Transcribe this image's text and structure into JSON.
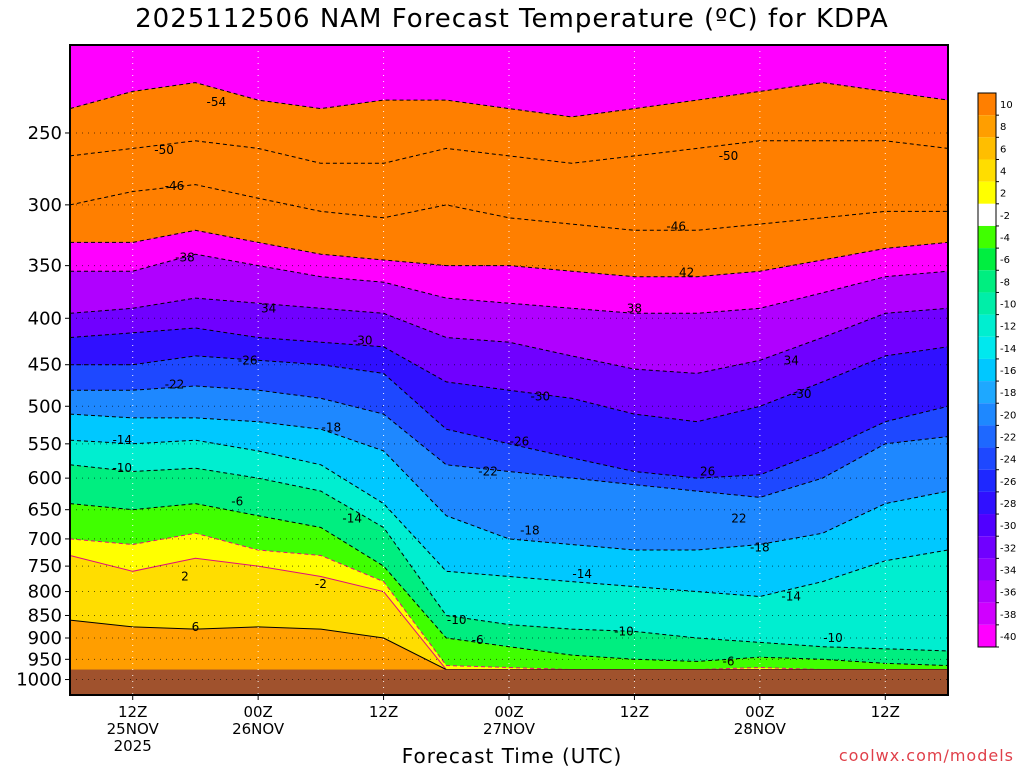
{
  "chart_data": {
    "type": "heatmap",
    "title": "2025112506 NAM Forecast Temperature (ºC) for KDPA",
    "xlabel": "Forecast Time (UTC)",
    "ylabel": "",
    "credit": "coolwx.com/models",
    "y_axis": {
      "scale": "log-pressure",
      "inverted": true,
      "ylim": [
        1040,
        200
      ],
      "ticks": [
        250,
        300,
        350,
        400,
        450,
        500,
        550,
        600,
        650,
        700,
        750,
        800,
        850,
        900,
        950,
        1000
      ]
    },
    "x_axis": {
      "ticks": [
        {
          "hour": 6,
          "line1": "12Z",
          "line2": "25NOV",
          "line3": "2025"
        },
        {
          "hour": 18,
          "line1": "00Z",
          "line2": "26NOV",
          "line3": ""
        },
        {
          "hour": 30,
          "line1": "12Z",
          "line2": "",
          "line3": ""
        },
        {
          "hour": 42,
          "line1": "00Z",
          "line2": "27NOV",
          "line3": ""
        },
        {
          "hour": 54,
          "line1": "12Z",
          "line2": "",
          "line3": ""
        },
        {
          "hour": 66,
          "line1": "00Z",
          "line2": "28NOV",
          "line3": ""
        },
        {
          "hour": 78,
          "line1": "12Z",
          "line2": "",
          "line3": ""
        }
      ],
      "xlim": [
        0,
        84
      ]
    },
    "grid": true,
    "colorbar": {
      "placement": "right",
      "labels": [
        "10",
        "8",
        "6",
        "4",
        "2",
        "-2",
        "-4",
        "-6",
        "-8",
        "-10",
        "-12",
        "-14",
        "-16",
        "-18",
        "-20",
        "-22",
        "-24",
        "-26",
        "-28",
        "-30",
        "-32",
        "-34",
        "-36",
        "-38",
        "-40"
      ],
      "colors": [
        "#ff7f00",
        "#ff9e00",
        "#ffbe00",
        "#ffdd00",
        "#ffff00",
        "#ffffff",
        "#40ff00",
        "#00ee40",
        "#00ee80",
        "#00eea8",
        "#00eed0",
        "#00e8ee",
        "#00c8ff",
        "#1ea8ff",
        "#1e88ff",
        "#1e68ff",
        "#1e48ff",
        "#1e28ff",
        "#3010ff",
        "#5000ff",
        "#7000ff",
        "#9000ff",
        "#b000ff",
        "#d000ff",
        "#ff00ff"
      ]
    },
    "isotherm_profile_hours": [
      0,
      6,
      12,
      18,
      24,
      30,
      36,
      42,
      48,
      54,
      60,
      66,
      72,
      78,
      84
    ],
    "isotherm_profiles": [
      {
        "level": 2,
        "pressures": [
          730,
          760,
          735,
          750,
          770,
          800,
          975,
          975,
          975,
          975,
          975,
          975,
          975,
          975,
          975
        ]
      },
      {
        "level": 6,
        "pressures": [
          860,
          875,
          880,
          875,
          880,
          900,
          975,
          975,
          975,
          975,
          975,
          975,
          975,
          975,
          975
        ]
      },
      {
        "level": -2,
        "pressures": [
          700,
          710,
          690,
          720,
          730,
          780,
          965,
          970,
          975,
          975,
          975,
          970,
          975,
          975,
          975
        ]
      },
      {
        "level": -6,
        "pressures": [
          640,
          650,
          640,
          660,
          680,
          750,
          900,
          920,
          940,
          950,
          955,
          945,
          950,
          960,
          965
        ]
      },
      {
        "level": -10,
        "pressures": [
          580,
          590,
          585,
          600,
          620,
          680,
          850,
          870,
          880,
          885,
          900,
          910,
          920,
          925,
          930
        ]
      },
      {
        "level": -14,
        "pressures": [
          545,
          550,
          545,
          560,
          580,
          640,
          760,
          770,
          780,
          790,
          800,
          810,
          780,
          740,
          720
        ]
      },
      {
        "level": -18,
        "pressures": [
          510,
          515,
          515,
          520,
          530,
          560,
          660,
          700,
          710,
          720,
          720,
          710,
          690,
          640,
          620
        ]
      },
      {
        "level": -22,
        "pressures": [
          480,
          480,
          475,
          480,
          490,
          510,
          580,
          590,
          600,
          610,
          620,
          630,
          600,
          550,
          540
        ]
      },
      {
        "level": -26,
        "pressures": [
          450,
          450,
          440,
          445,
          450,
          460,
          530,
          550,
          570,
          590,
          600,
          595,
          560,
          520,
          500
        ]
      },
      {
        "level": -30,
        "pressures": [
          420,
          415,
          410,
          420,
          425,
          430,
          470,
          480,
          490,
          510,
          520,
          500,
          470,
          440,
          430
        ]
      },
      {
        "level": -34,
        "pressures": [
          395,
          390,
          380,
          385,
          390,
          395,
          420,
          425,
          440,
          455,
          460,
          445,
          420,
          395,
          390
        ]
      },
      {
        "level": -38,
        "pressures": [
          355,
          355,
          340,
          350,
          360,
          365,
          380,
          385,
          390,
          395,
          395,
          390,
          375,
          360,
          355
        ]
      },
      {
        "level": -42,
        "pressures": [
          330,
          330,
          320,
          330,
          340,
          345,
          350,
          350,
          355,
          360,
          360,
          355,
          345,
          335,
          330
        ]
      },
      {
        "level": -46,
        "pressures": [
          300,
          290,
          285,
          295,
          305,
          310,
          300,
          310,
          315,
          320,
          320,
          315,
          310,
          305,
          305
        ]
      },
      {
        "level": -50,
        "pressures": [
          265,
          260,
          255,
          260,
          270,
          270,
          260,
          265,
          270,
          265,
          260,
          255,
          255,
          255,
          260
        ]
      },
      {
        "level": -54,
        "pressures": [
          235,
          225,
          220,
          230,
          235,
          230,
          230,
          235,
          240,
          235,
          230,
          225,
          220,
          225,
          230
        ]
      }
    ],
    "contour_labels": [
      {
        "text": "-54",
        "hour": 14,
        "p": 231
      },
      {
        "text": "-50",
        "hour": 9,
        "p": 261
      },
      {
        "text": "-46",
        "hour": 10,
        "p": 286
      },
      {
        "text": "-38",
        "hour": 11,
        "p": 343
      },
      {
        "text": "34",
        "hour": 19,
        "p": 390
      },
      {
        "text": "-30",
        "hour": 28,
        "p": 423
      },
      {
        "text": "-26",
        "hour": 17,
        "p": 445
      },
      {
        "text": "-22",
        "hour": 10,
        "p": 473
      },
      {
        "text": "-18",
        "hour": 25,
        "p": 528
      },
      {
        "text": "-14",
        "hour": 5,
        "p": 545
      },
      {
        "text": "-10",
        "hour": 5,
        "p": 585
      },
      {
        "text": "-6",
        "hour": 16,
        "p": 637
      },
      {
        "text": "-14",
        "hour": 27,
        "p": 665
      },
      {
        "text": "2",
        "hour": 11,
        "p": 770
      },
      {
        "text": "-2",
        "hour": 24,
        "p": 785
      },
      {
        "text": "6",
        "hour": 12,
        "p": 875
      },
      {
        "text": "-46",
        "hour": 58,
        "p": 317
      },
      {
        "text": "-50",
        "hour": 63,
        "p": 265
      },
      {
        "text": "42",
        "hour": 59,
        "p": 356
      },
      {
        "text": "38",
        "hour": 54,
        "p": 390
      },
      {
        "text": "34",
        "hour": 69,
        "p": 445
      },
      {
        "text": "-30",
        "hour": 70,
        "p": 485
      },
      {
        "text": "-30",
        "hour": 45,
        "p": 488
      },
      {
        "text": "-26",
        "hour": 43,
        "p": 547
      },
      {
        "text": "-22",
        "hour": 40,
        "p": 590
      },
      {
        "text": "26",
        "hour": 61,
        "p": 590
      },
      {
        "text": "22",
        "hour": 64,
        "p": 665
      },
      {
        "text": "-18",
        "hour": 44,
        "p": 685
      },
      {
        "text": "-18",
        "hour": 66,
        "p": 715
      },
      {
        "text": "-14",
        "hour": 49,
        "p": 765
      },
      {
        "text": "-14",
        "hour": 69,
        "p": 810
      },
      {
        "text": "-10",
        "hour": 37,
        "p": 860
      },
      {
        "text": "-10",
        "hour": 53,
        "p": 885
      },
      {
        "text": "-10",
        "hour": 73,
        "p": 900
      },
      {
        "text": "-6",
        "hour": 39,
        "p": 905
      },
      {
        "text": "-6",
        "hour": 63,
        "p": 955
      }
    ],
    "ground_pressure": 975
  }
}
